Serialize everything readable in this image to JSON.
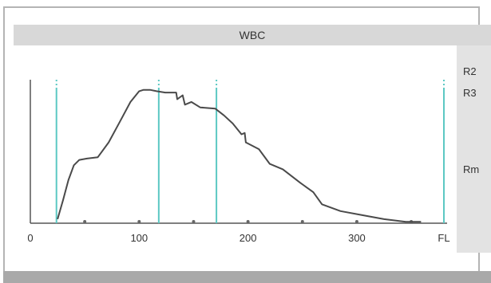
{
  "header": {
    "title": "WBC"
  },
  "side_labels": {
    "r2": "R2",
    "r3": "R3",
    "rm": "Rm"
  },
  "colors": {
    "marker": "#5cc8c3",
    "curve": "#4a4a4a",
    "axis": "#555555",
    "dot": "#666666"
  },
  "chart_data": {
    "type": "line",
    "title": "WBC",
    "xlabel": "FL",
    "ylabel": "",
    "xlim": [
      0,
      380
    ],
    "ylim": [
      0,
      100
    ],
    "x_ticks": [
      {
        "value": 0,
        "label": "0"
      },
      {
        "value": 100,
        "label": "100"
      },
      {
        "value": 200,
        "label": "200"
      },
      {
        "value": 300,
        "label": "300"
      },
      {
        "value": 380,
        "label": "FL"
      }
    ],
    "dots_x": [
      50,
      100,
      150,
      200,
      250,
      300,
      350
    ],
    "markers_x": [
      24,
      118,
      171,
      380
    ],
    "series": [
      {
        "values": [
          [
            25,
            3
          ],
          [
            30,
            17
          ],
          [
            35,
            32
          ],
          [
            40,
            43
          ],
          [
            45,
            47
          ],
          [
            52,
            48
          ],
          [
            62,
            49
          ],
          [
            72,
            60
          ],
          [
            82,
            75
          ],
          [
            92,
            90
          ],
          [
            100,
            98
          ],
          [
            104,
            99
          ],
          [
            110,
            99
          ],
          [
            116,
            98
          ],
          [
            124,
            97
          ],
          [
            134,
            97
          ],
          [
            135,
            92
          ],
          [
            140,
            95
          ],
          [
            142,
            88
          ],
          [
            148,
            90
          ],
          [
            156,
            86
          ],
          [
            170,
            85
          ],
          [
            178,
            80
          ],
          [
            186,
            74
          ],
          [
            194,
            66
          ],
          [
            197,
            67
          ],
          [
            198,
            60
          ],
          [
            210,
            55
          ],
          [
            220,
            44
          ],
          [
            232,
            40
          ],
          [
            248,
            30
          ],
          [
            260,
            23
          ],
          [
            268,
            14
          ],
          [
            285,
            9
          ],
          [
            305,
            6
          ],
          [
            325,
            3
          ],
          [
            345,
            1
          ],
          [
            359,
            1
          ]
        ]
      }
    ]
  }
}
